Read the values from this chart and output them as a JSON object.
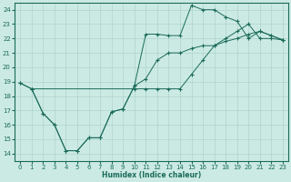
{
  "xlabel": "Humidex (Indice chaleur)",
  "xlim": [
    -0.5,
    23.5
  ],
  "ylim": [
    13.5,
    24.5
  ],
  "xticks": [
    0,
    1,
    2,
    3,
    4,
    5,
    6,
    7,
    8,
    9,
    10,
    11,
    12,
    13,
    14,
    15,
    16,
    17,
    18,
    19,
    20,
    21,
    22,
    23
  ],
  "yticks": [
    14,
    15,
    16,
    17,
    18,
    19,
    20,
    21,
    22,
    23,
    24
  ],
  "bg_color": "#cceae4",
  "grid_color": "#aed4cc",
  "line_color": "#1a6b5a",
  "line1_x": [
    0,
    1,
    10,
    11,
    12,
    13,
    14,
    15,
    16,
    17,
    18,
    19,
    20,
    21,
    22,
    23
  ],
  "line1_y": [
    18.9,
    18.5,
    18.5,
    18.5,
    18.5,
    18.5,
    18.5,
    19.5,
    20.5,
    21.5,
    22.0,
    22.5,
    23.0,
    22.0,
    22.0,
    21.9
  ],
  "line2_x": [
    0,
    1,
    2,
    3,
    4,
    5,
    6,
    7,
    8,
    9,
    10,
    11,
    12,
    13,
    14,
    15,
    16,
    17,
    18,
    19,
    20,
    21,
    22,
    23
  ],
  "line2_y": [
    18.9,
    18.5,
    16.8,
    16.0,
    14.2,
    14.2,
    15.1,
    15.1,
    16.9,
    17.1,
    18.7,
    22.3,
    22.3,
    22.2,
    22.2,
    24.3,
    24.0,
    24.0,
    23.5,
    23.2,
    22.0,
    22.5,
    22.2,
    21.9
  ],
  "line3_x": [
    1,
    2,
    3,
    4,
    5,
    6,
    7,
    8,
    9,
    10,
    11,
    12,
    13,
    14,
    15,
    16,
    17,
    18,
    19,
    20,
    21,
    22,
    23
  ],
  "line3_y": [
    18.5,
    16.8,
    16.0,
    14.2,
    14.2,
    15.1,
    15.1,
    16.9,
    17.1,
    18.7,
    19.2,
    20.5,
    21.0,
    21.0,
    21.3,
    21.5,
    21.5,
    21.8,
    22.0,
    22.3,
    22.5,
    22.2,
    21.9
  ]
}
